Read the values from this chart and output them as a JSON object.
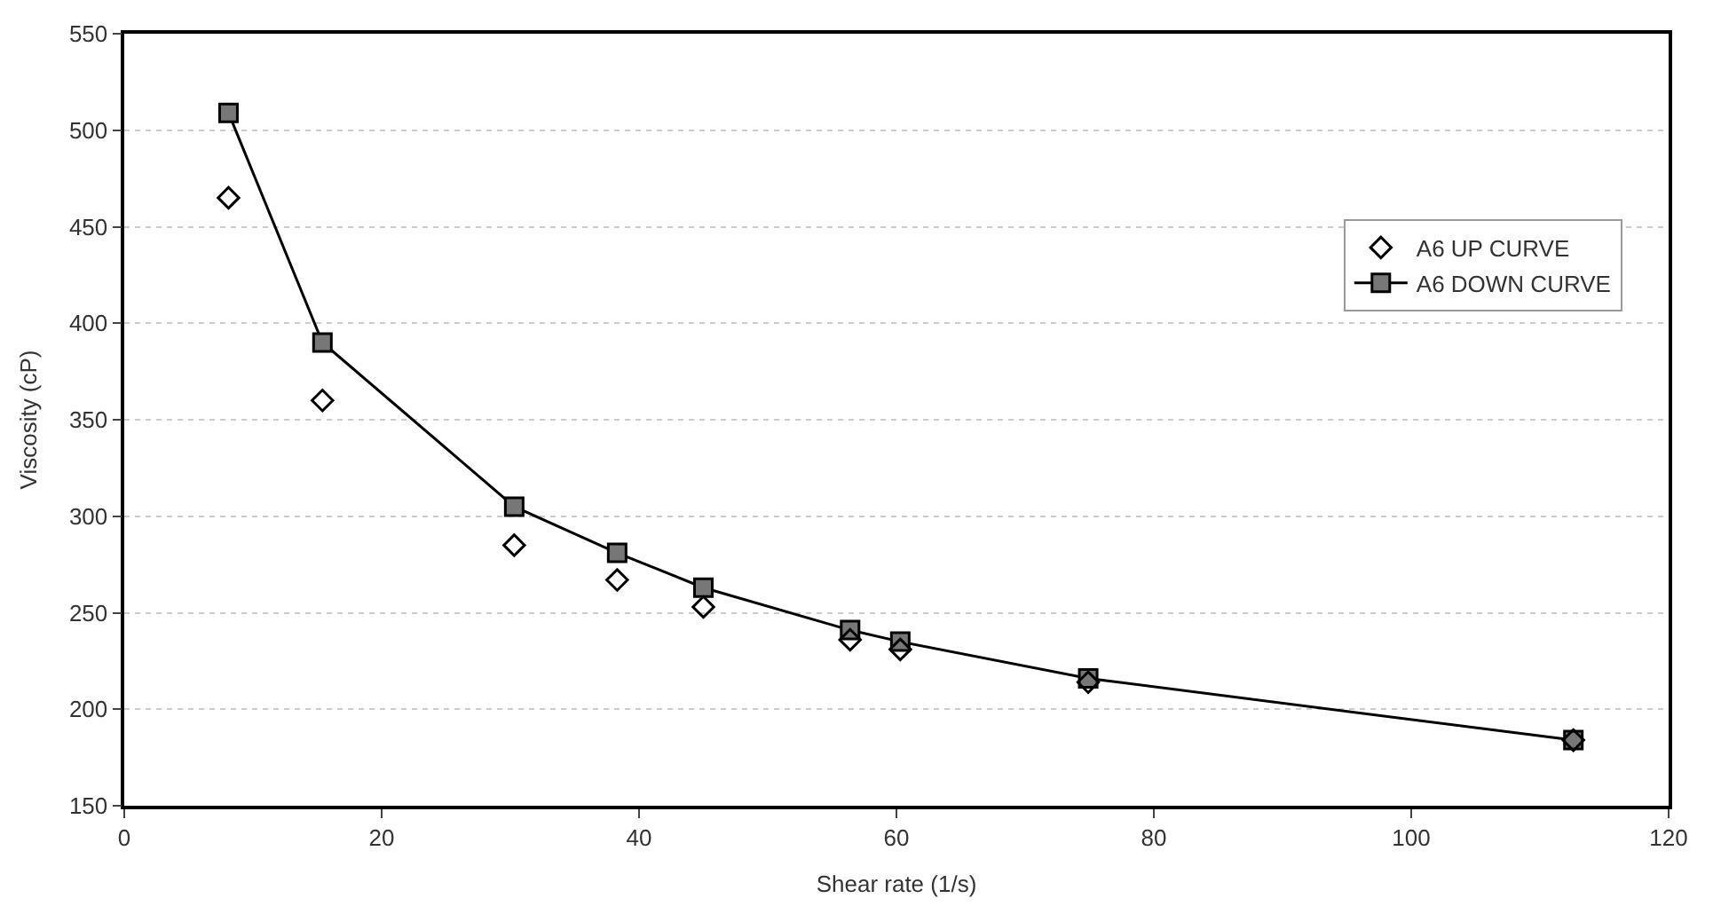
{
  "chart_data": {
    "type": "line",
    "xlabel": "Shear rate (1/s)",
    "ylabel": "Viscosity (cP)",
    "x": [
      8.1,
      15.4,
      30.3,
      38.3,
      45.0,
      56.4,
      60.3,
      74.9,
      112.6
    ],
    "series": [
      {
        "name": "A6 UP CURVE",
        "type": "scatter",
        "marker": "diamond",
        "color": "#000000",
        "values": [
          465,
          360,
          285,
          267,
          253,
          236,
          231,
          214,
          184
        ]
      },
      {
        "name": "A6 DOWN CURVE",
        "marker": "square",
        "color": "#000000",
        "values": [
          509,
          390,
          305,
          281,
          263,
          241,
          235,
          216,
          184
        ]
      }
    ],
    "xlim": [
      0,
      120
    ],
    "xticks": [
      0,
      20,
      40,
      60,
      80,
      100,
      120
    ],
    "ylim": [
      150,
      550
    ],
    "yticks": [
      150,
      200,
      250,
      300,
      350,
      400,
      450,
      500,
      550
    ],
    "grid": "y",
    "legend": "right",
    "line_style": "solid"
  }
}
